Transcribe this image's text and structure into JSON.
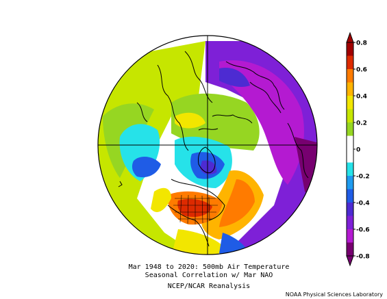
{
  "title_line1": "Mar 1948 to 2020: 500mb Air Temperature",
  "title_line2": "Seasonal Correlation w/ Mar NAO",
  "source": "NCEP/NCAR Reanalysis",
  "credit": "NOAA Physical Sciences Laboratory",
  "projection": "north-polar-stereographic",
  "colorbar": {
    "labels": [
      "0.8",
      "0.6",
      "0.4",
      "0.2",
      "0",
      "-0.2",
      "-0.4",
      "-0.6",
      "-0.8"
    ],
    "bins": [
      {
        "range": [
          0.7,
          0.8
        ],
        "color": "#a10000"
      },
      {
        "range": [
          0.6,
          0.7
        ],
        "color": "#dd2a00"
      },
      {
        "range": [
          0.5,
          0.6
        ],
        "color": "#ff7b00"
      },
      {
        "range": [
          0.4,
          0.5
        ],
        "color": "#ffb400"
      },
      {
        "range": [
          0.3,
          0.4
        ],
        "color": "#f2e600"
      },
      {
        "range": [
          0.2,
          0.3
        ],
        "color": "#c6e600"
      },
      {
        "range": [
          0.1,
          0.2
        ],
        "color": "#96d622"
      },
      {
        "range": [
          -0.1,
          0.1
        ],
        "color": "#ffffff"
      },
      {
        "range": [
          -0.2,
          -0.1
        ],
        "color": "#26e2e9"
      },
      {
        "range": [
          -0.3,
          -0.2
        ],
        "color": "#1e9bf0"
      },
      {
        "range": [
          -0.4,
          -0.3
        ],
        "color": "#1f5ce6"
      },
      {
        "range": [
          -0.5,
          -0.4
        ],
        "color": "#4d2bd2"
      },
      {
        "range": [
          -0.6,
          -0.5
        ],
        "color": "#7e20d7"
      },
      {
        "range": [
          -0.7,
          -0.6
        ],
        "color": "#b41ad1"
      },
      {
        "range": [
          -0.8,
          -0.7
        ],
        "color": "#770070"
      }
    ]
  }
}
